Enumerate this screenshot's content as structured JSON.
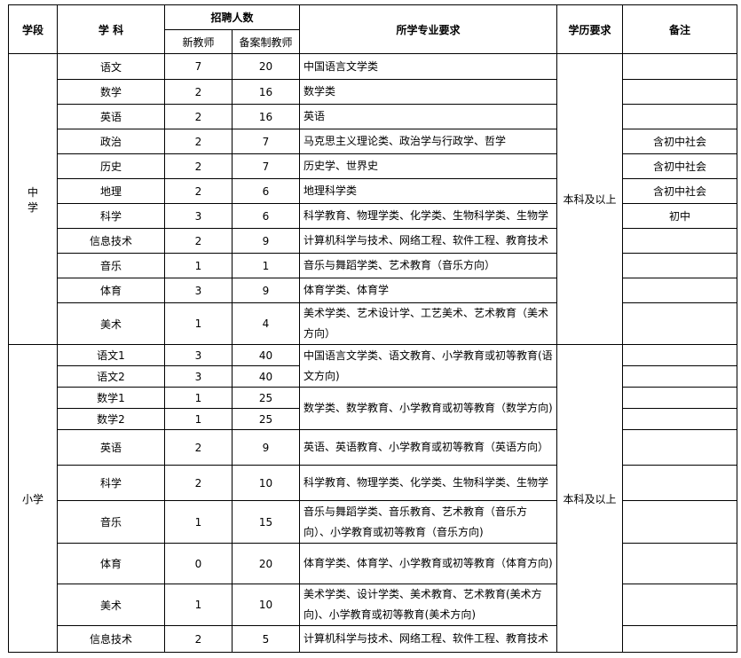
{
  "header": {
    "stage": "学段",
    "subject": "学 科",
    "recruit": "招聘人数",
    "new_teacher": "新教师",
    "filed_teacher": "备案制教师",
    "major": "所学专业要求",
    "degree": "学历要求",
    "note": "备注"
  },
  "sections": [
    {
      "stage": "中\n学",
      "degree": "本科及以上",
      "rows": [
        {
          "subject": "语文",
          "new": "7",
          "filed": "20",
          "major": "中国语言文学类",
          "note": ""
        },
        {
          "subject": "数学",
          "new": "2",
          "filed": "16",
          "major": "数学类",
          "note": ""
        },
        {
          "subject": "英语",
          "new": "2",
          "filed": "16",
          "major": "英语",
          "note": ""
        },
        {
          "subject": "政治",
          "new": "2",
          "filed": "7",
          "major": "马克思主义理论类、政治学与行政学、哲学",
          "note": "含初中社会"
        },
        {
          "subject": "历史",
          "new": "2",
          "filed": "7",
          "major": "历史学、世界史",
          "note": "含初中社会"
        },
        {
          "subject": "地理",
          "new": "2",
          "filed": "6",
          "major": "地理科学类",
          "note": "含初中社会"
        },
        {
          "subject": "科学",
          "new": "3",
          "filed": "6",
          "major": "科学教育、物理学类、化学类、生物科学类、生物学",
          "note": "初中"
        },
        {
          "subject": "信息技术",
          "new": "2",
          "filed": "9",
          "major": "计算机科学与技术、网络工程、软件工程、教育技术",
          "note": ""
        },
        {
          "subject": "音乐",
          "new": "1",
          "filed": "1",
          "major": "音乐与舞蹈学类、艺术教育（音乐方向）",
          "note": ""
        },
        {
          "subject": "体育",
          "new": "3",
          "filed": "9",
          "major": "体育学类、体育学",
          "note": ""
        },
        {
          "subject": "美术",
          "new": "1",
          "filed": "4",
          "major": "美术学类、艺术设计学、工艺美术、艺术教育（美术方向）",
          "note": ""
        }
      ]
    },
    {
      "stage": "小学",
      "degree": "本科及以上",
      "rows": [
        {
          "subject": "语文1",
          "new": "3",
          "filed": "40",
          "major": "中国语言文学类、语文教育、小学教育或初等教育(语文方向)",
          "note": ""
        },
        {
          "subject": "语文2",
          "new": "3",
          "filed": "40",
          "major": null,
          "note": ""
        },
        {
          "subject": "数学1",
          "new": "1",
          "filed": "25",
          "major": "数学类、数学教育、小学教育或初等教育（数学方向)",
          "note": ""
        },
        {
          "subject": "数学2",
          "new": "1",
          "filed": "25",
          "major": null,
          "note": ""
        },
        {
          "subject": "英语",
          "new": "2",
          "filed": "9",
          "major": "英语、英语教育、小学教育或初等教育（英语方向）",
          "note": ""
        },
        {
          "subject": "科学",
          "new": "2",
          "filed": "10",
          "major": "科学教育、物理学类、化学类、生物科学类、生物学",
          "note": ""
        },
        {
          "subject": "音乐",
          "new": "1",
          "filed": "15",
          "major": "音乐与舞蹈学类、音乐教育、艺术教育（音乐方向）、小学教育或初等教育（音乐方向)",
          "note": ""
        },
        {
          "subject": "体育",
          "new": "0",
          "filed": "20",
          "major": "体育学类、体育学、小学教育或初等教育（体育方向)",
          "note": ""
        },
        {
          "subject": "美术",
          "new": "1",
          "filed": "10",
          "major": "美术学类、设计学类、美术教育、艺术教育(美术方向)、小学教育或初等教育(美术方向)",
          "note": ""
        },
        {
          "subject": "信息技术",
          "new": "2",
          "filed": "5",
          "major": "计算机科学与技术、网络工程、软件工程、教育技术",
          "note": ""
        }
      ]
    }
  ]
}
